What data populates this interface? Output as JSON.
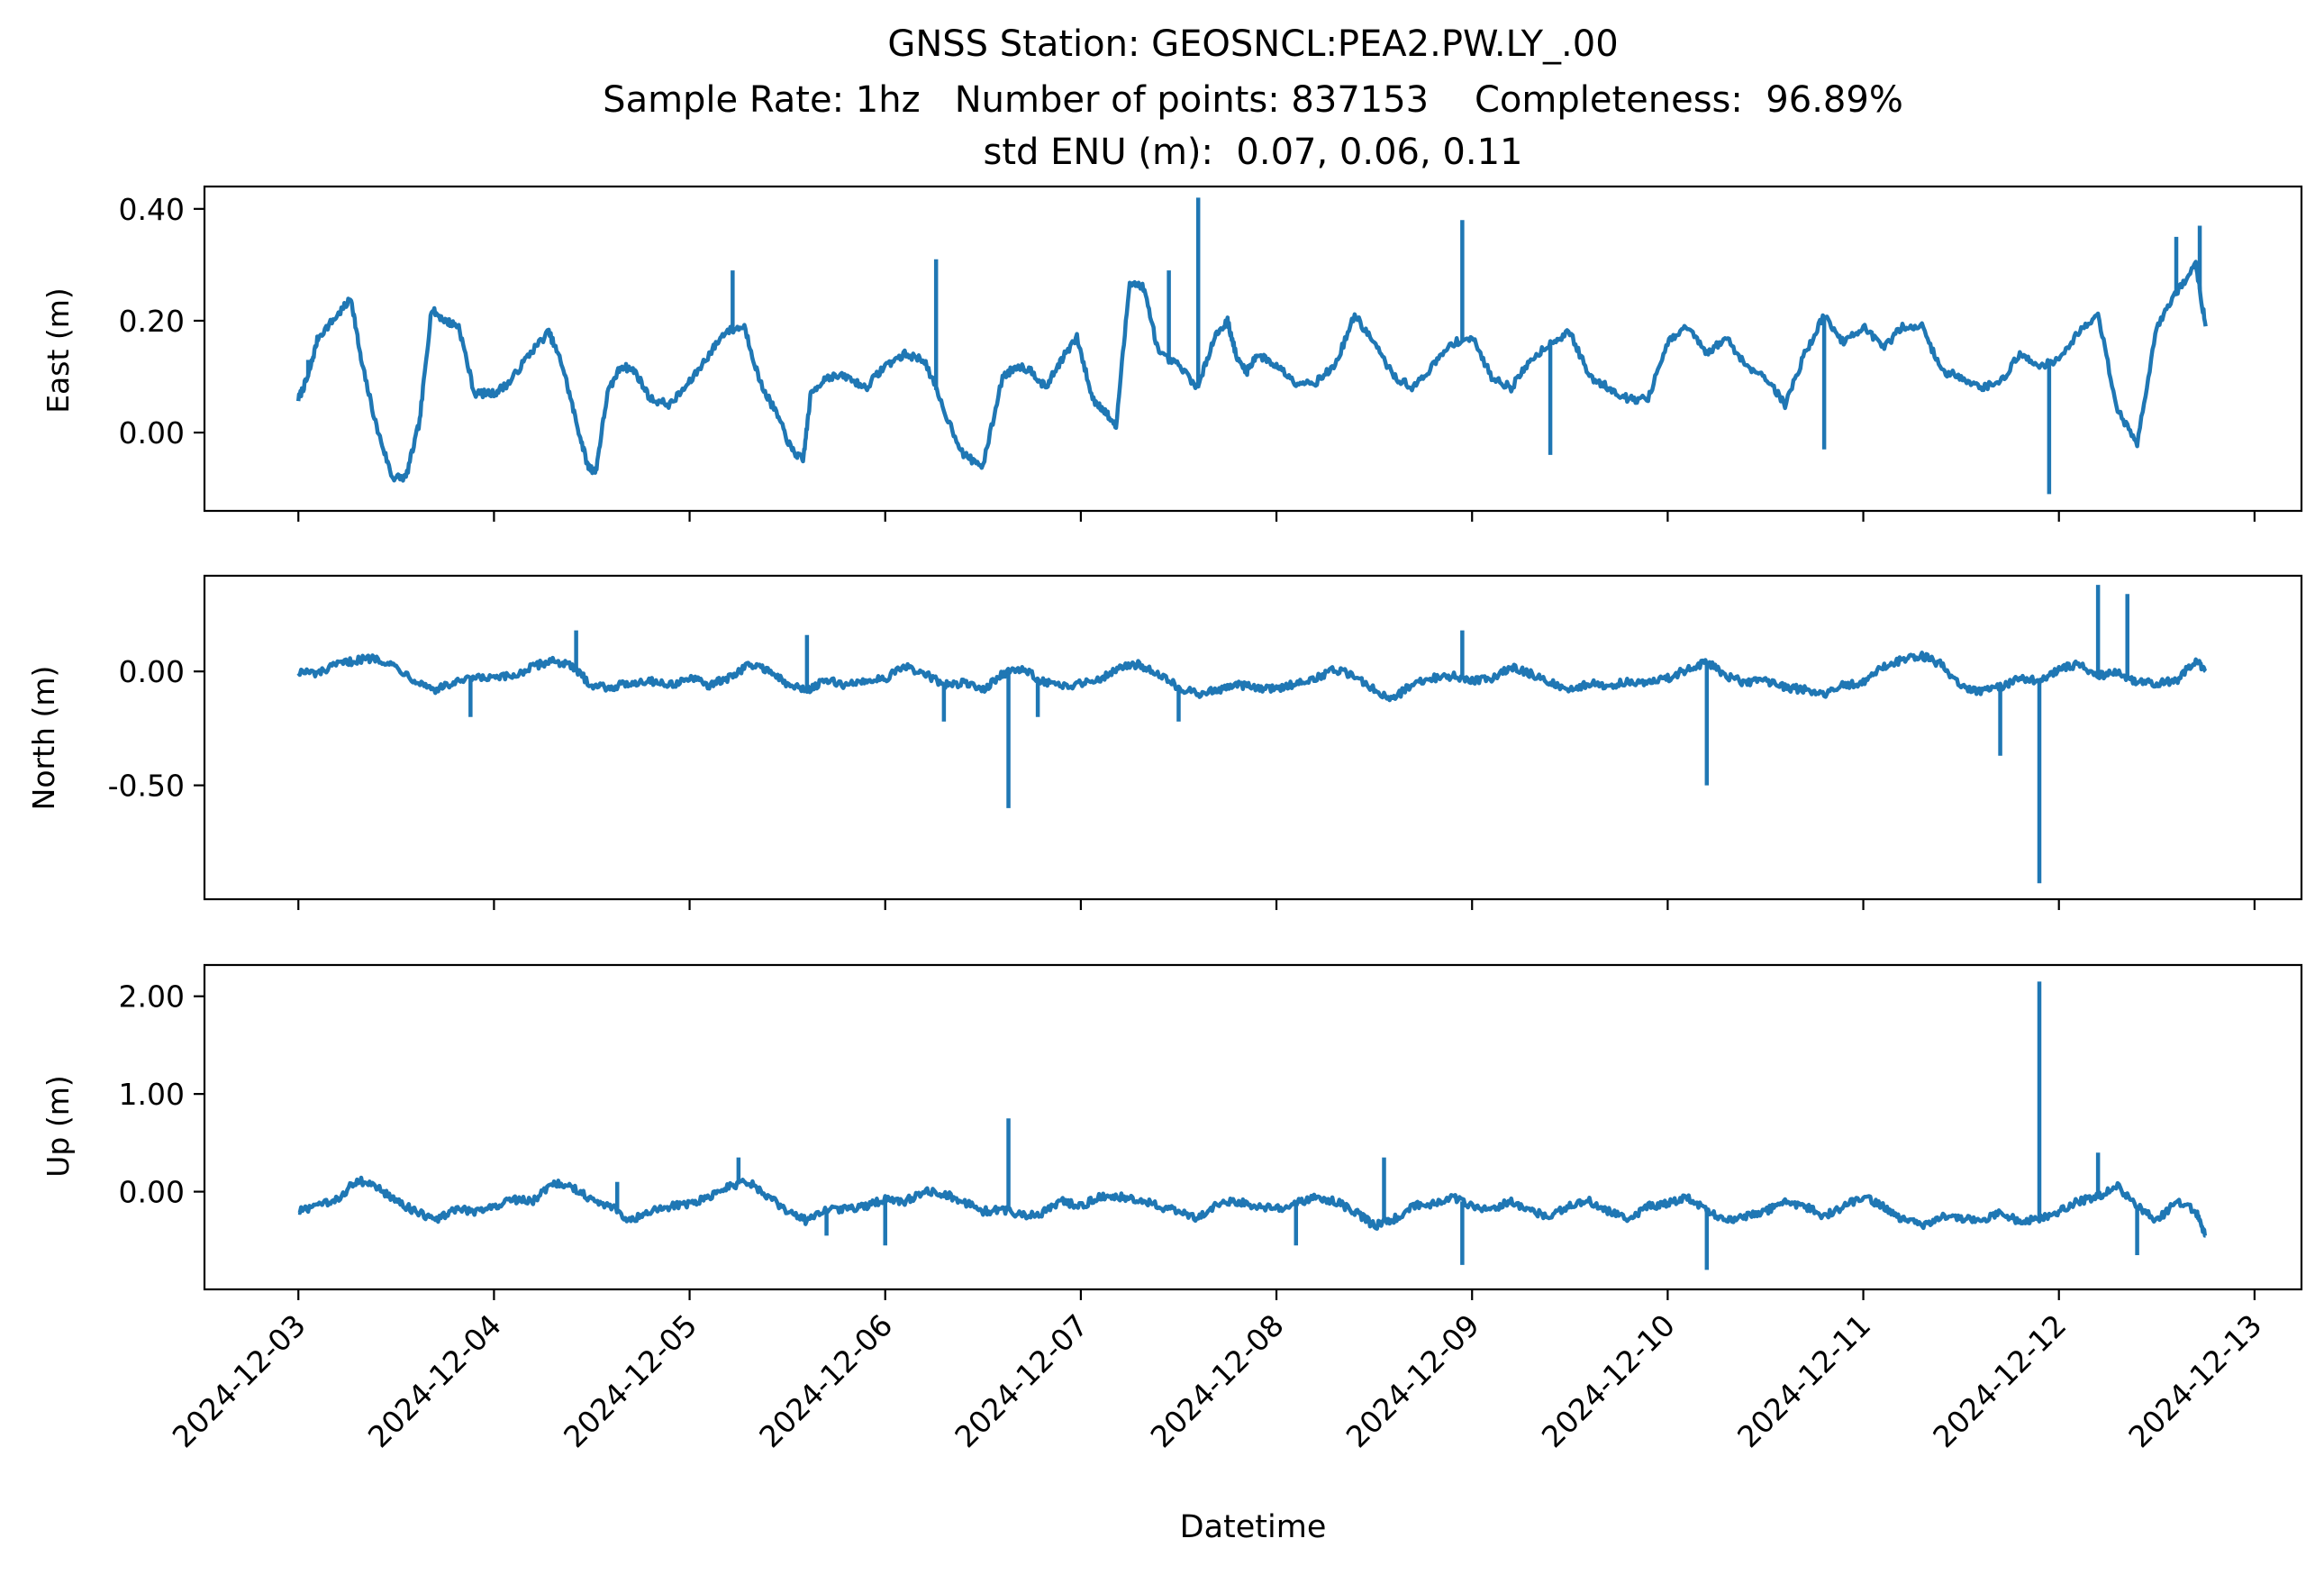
{
  "figure": {
    "title_lines": [
      "GNSS Station: GEOSNCL:PEA2.PW.LY_.00",
      "Sample Rate: 1hz   Number of points: 837153    Completeness:  96.89%",
      "std ENU (m):  0.07, 0.06, 0.11"
    ],
    "xlabel": "Datetime",
    "x_ticks": [
      "2024-12-03",
      "2024-12-04",
      "2024-12-05",
      "2024-12-06",
      "2024-12-07",
      "2024-12-08",
      "2024-12-09",
      "2024-12-10",
      "2024-12-11",
      "2024-12-12",
      "2024-12-13"
    ],
    "line_color": "#1f77b4"
  },
  "chart_data": [
    {
      "type": "line",
      "ylabel": "East (m)",
      "x_unit": "days since 2024-12-03 00:00",
      "xlim": [
        -0.48,
        10.24
      ],
      "ylim": [
        -0.14,
        0.44
      ],
      "yticks": [
        0.0,
        0.2,
        0.4
      ],
      "ytick_labels": [
        "0.00",
        "0.20",
        "0.40"
      ],
      "series": [
        {
          "x": [
            0,
            0.05,
            0.1,
            0.2,
            0.27,
            0.32,
            0.4,
            0.48,
            0.55,
            0.62,
            0.68,
            0.75,
            0.82,
            0.9,
            1.0,
            1.08,
            1.18,
            1.28,
            1.35,
            1.42,
            1.48,
            1.52,
            1.58,
            1.65,
            1.72,
            1.8,
            1.9,
            2.0,
            2.1,
            2.18,
            2.28,
            2.36,
            2.45,
            2.52,
            2.58,
            2.62,
            2.7,
            2.8,
            2.9,
            3.0,
            3.1,
            3.2,
            3.3,
            3.4,
            3.5,
            3.6,
            3.68,
            3.75,
            3.82,
            3.9,
            3.98,
            4.06,
            4.12,
            4.18,
            4.25,
            4.32,
            4.4,
            4.5,
            4.6,
            4.68,
            4.75,
            4.8,
            4.85,
            4.9,
            5.0,
            5.1,
            5.2,
            5.3,
            5.4,
            5.5,
            5.6,
            5.7,
            5.8,
            5.9,
            6.0,
            6.1,
            6.2,
            6.3,
            6.4,
            6.5,
            6.6,
            6.7,
            6.8,
            6.9,
            7.0,
            7.1,
            7.2,
            7.3,
            7.4,
            7.5,
            7.6,
            7.7,
            7.8,
            7.9,
            8.0,
            8.1,
            8.2,
            8.3,
            8.4,
            8.5,
            8.6,
            8.7,
            8.8,
            8.9,
            9.0,
            9.1,
            9.2,
            9.3,
            9.4,
            9.5,
            9.6,
            9.7,
            9.75
          ],
          "y": [
            0.06,
            0.1,
            0.17,
            0.21,
            0.24,
            0.13,
            0.01,
            -0.08,
            -0.08,
            0.02,
            0.22,
            0.2,
            0.19,
            0.07,
            0.07,
            0.09,
            0.14,
            0.18,
            0.12,
            0.02,
            -0.06,
            -0.07,
            0.07,
            0.12,
            0.11,
            0.06,
            0.05,
            0.09,
            0.14,
            0.18,
            0.19,
            0.09,
            0.03,
            -0.03,
            -0.05,
            0.07,
            0.1,
            0.1,
            0.08,
            0.12,
            0.14,
            0.13,
            0.04,
            -0.04,
            -0.06,
            0.1,
            0.12,
            0.11,
            0.08,
            0.13,
            0.17,
            0.06,
            0.04,
            0.01,
            0.27,
            0.26,
            0.14,
            0.12,
            0.08,
            0.17,
            0.2,
            0.13,
            0.11,
            0.14,
            0.12,
            0.09,
            0.09,
            0.12,
            0.21,
            0.16,
            0.1,
            0.08,
            0.12,
            0.16,
            0.17,
            0.1,
            0.08,
            0.13,
            0.16,
            0.18,
            0.1,
            0.08,
            0.06,
            0.06,
            0.16,
            0.19,
            0.14,
            0.17,
            0.12,
            0.1,
            0.05,
            0.14,
            0.21,
            0.16,
            0.19,
            0.15,
            0.19,
            0.19,
            0.11,
            0.1,
            0.08,
            0.09,
            0.14,
            0.12,
            0.13,
            0.18,
            0.21,
            0.04,
            -0.02,
            0.19,
            0.25,
            0.3,
            0.19
          ]
        }
      ],
      "spikes": [
        {
          "x": 4.6,
          "y": 0.42
        },
        {
          "x": 5.95,
          "y": 0.38
        },
        {
          "x": 0.05,
          "y": 0.13
        },
        {
          "x": 2.22,
          "y": 0.29
        },
        {
          "x": 3.26,
          "y": 0.31
        },
        {
          "x": 4.45,
          "y": 0.29
        },
        {
          "x": 6.4,
          "y": -0.04
        },
        {
          "x": 7.8,
          "y": -0.03
        },
        {
          "x": 8.95,
          "y": -0.11
        },
        {
          "x": 9.6,
          "y": 0.35
        },
        {
          "x": 9.72,
          "y": 0.37
        }
      ]
    },
    {
      "type": "line",
      "ylabel": "North (m)",
      "x_unit": "days since 2024-12-03 00:00",
      "xlim": [
        -0.48,
        10.24
      ],
      "ylim": [
        -1.0,
        0.42
      ],
      "yticks": [
        0.0,
        -0.5
      ],
      "ytick_labels": [
        "0.00",
        "-0.50"
      ],
      "series": [
        {
          "x": [
            0,
            0.1,
            0.2,
            0.3,
            0.4,
            0.5,
            0.6,
            0.7,
            0.8,
            0.9,
            1.0,
            1.1,
            1.2,
            1.3,
            1.4,
            1.5,
            1.6,
            1.7,
            1.8,
            1.9,
            2.0,
            2.1,
            2.2,
            2.3,
            2.4,
            2.5,
            2.6,
            2.7,
            2.8,
            2.9,
            3.0,
            3.1,
            3.2,
            3.3,
            3.4,
            3.5,
            3.6,
            3.7,
            3.8,
            3.9,
            4.0,
            4.1,
            4.2,
            4.3,
            4.4,
            4.5,
            4.6,
            4.7,
            4.8,
            4.9,
            5.0,
            5.1,
            5.2,
            5.3,
            5.4,
            5.5,
            5.6,
            5.7,
            5.8,
            5.9,
            6.0,
            6.1,
            6.2,
            6.3,
            6.4,
            6.5,
            6.6,
            6.7,
            6.8,
            6.9,
            7.0,
            7.1,
            7.2,
            7.3,
            7.4,
            7.5,
            7.6,
            7.7,
            7.8,
            7.9,
            8.0,
            8.1,
            8.2,
            8.3,
            8.4,
            8.5,
            8.6,
            8.7,
            8.8,
            8.9,
            9.0,
            9.1,
            9.2,
            9.3,
            9.4,
            9.5,
            9.6,
            9.7,
            9.75
          ],
          "y": [
            0.0,
            -0.01,
            0.03,
            0.05,
            0.06,
            0.02,
            -0.04,
            -0.08,
            -0.05,
            -0.03,
            -0.03,
            -0.02,
            0.02,
            0.05,
            0.02,
            -0.06,
            -0.07,
            -0.05,
            -0.04,
            -0.06,
            -0.03,
            -0.06,
            -0.03,
            0.03,
            0.01,
            -0.06,
            -0.08,
            -0.04,
            -0.06,
            -0.04,
            -0.03,
            0.02,
            -0.01,
            -0.06,
            -0.05,
            -0.08,
            -0.01,
            0.01,
            -0.04,
            -0.07,
            -0.05,
            -0.03,
            0.02,
            0.03,
            -0.01,
            -0.07,
            -0.1,
            -0.08,
            -0.06,
            -0.07,
            -0.08,
            -0.05,
            -0.03,
            0.01,
            -0.02,
            -0.08,
            -0.12,
            -0.05,
            -0.03,
            -0.02,
            -0.04,
            -0.03,
            0.02,
            -0.01,
            -0.05,
            -0.08,
            -0.05,
            -0.07,
            -0.04,
            -0.05,
            -0.03,
            0.01,
            0.04,
            -0.02,
            -0.05,
            -0.04,
            -0.07,
            -0.08,
            -0.1,
            -0.06,
            -0.05,
            0.02,
            0.05,
            0.07,
            0.03,
            -0.07,
            -0.09,
            -0.07,
            -0.03,
            -0.04,
            0.01,
            0.03,
            -0.02,
            0.0,
            -0.05,
            -0.05,
            -0.04,
            0.05,
            0.0
          ]
        }
      ],
      "spikes": [
        {
          "x": 3.63,
          "y": -0.6
        },
        {
          "x": 7.2,
          "y": -0.5
        },
        {
          "x": 8.9,
          "y": -0.93
        },
        {
          "x": 8.7,
          "y": -0.37
        },
        {
          "x": 9.2,
          "y": 0.38
        },
        {
          "x": 9.35,
          "y": 0.34
        },
        {
          "x": 5.95,
          "y": 0.18
        },
        {
          "x": 1.42,
          "y": 0.18
        },
        {
          "x": 3.3,
          "y": -0.22
        },
        {
          "x": 2.6,
          "y": 0.16
        },
        {
          "x": 3.78,
          "y": -0.2
        },
        {
          "x": 4.5,
          "y": -0.22
        },
        {
          "x": 0.88,
          "y": -0.2
        }
      ]
    },
    {
      "type": "line",
      "ylabel": "Up (m)",
      "x_unit": "days since 2024-12-03 00:00",
      "xlim": [
        -0.48,
        10.24
      ],
      "ylim": [
        -1.0,
        2.32
      ],
      "yticks": [
        0.0,
        1.0,
        2.0
      ],
      "ytick_labels": [
        "0.00",
        "1.00",
        "2.00"
      ],
      "series": [
        {
          "x": [
            0,
            0.1,
            0.2,
            0.3,
            0.4,
            0.5,
            0.6,
            0.7,
            0.8,
            0.9,
            1.0,
            1.1,
            1.2,
            1.3,
            1.4,
            1.5,
            1.6,
            1.7,
            1.8,
            1.9,
            2.0,
            2.1,
            2.2,
            2.3,
            2.4,
            2.5,
            2.6,
            2.7,
            2.8,
            2.9,
            3.0,
            3.1,
            3.2,
            3.3,
            3.4,
            3.5,
            3.6,
            3.7,
            3.8,
            3.9,
            4.0,
            4.1,
            4.2,
            4.3,
            4.4,
            4.5,
            4.6,
            4.7,
            4.8,
            4.9,
            5.0,
            5.1,
            5.2,
            5.3,
            5.4,
            5.5,
            5.6,
            5.7,
            5.8,
            5.9,
            6.0,
            6.1,
            6.2,
            6.3,
            6.4,
            6.5,
            6.6,
            6.7,
            6.8,
            6.9,
            7.0,
            7.1,
            7.2,
            7.3,
            7.4,
            7.5,
            7.6,
            7.7,
            7.8,
            7.9,
            8.0,
            8.1,
            8.2,
            8.3,
            8.4,
            8.5,
            8.6,
            8.7,
            8.8,
            8.9,
            9.0,
            9.1,
            9.2,
            9.3,
            9.4,
            9.5,
            9.6,
            9.7,
            9.75
          ],
          "y": [
            -0.2,
            -0.15,
            -0.08,
            0.12,
            0.05,
            -0.1,
            -0.2,
            -0.3,
            -0.18,
            -0.2,
            -0.15,
            -0.08,
            -0.1,
            0.1,
            0.05,
            -0.08,
            -0.15,
            -0.3,
            -0.2,
            -0.15,
            -0.12,
            -0.05,
            0.05,
            0.1,
            -0.05,
            -0.2,
            -0.3,
            -0.18,
            -0.18,
            -0.15,
            -0.08,
            -0.1,
            0.0,
            -0.02,
            -0.1,
            -0.2,
            -0.18,
            -0.25,
            -0.22,
            -0.1,
            -0.15,
            -0.05,
            -0.05,
            -0.08,
            -0.15,
            -0.2,
            -0.28,
            -0.12,
            -0.1,
            -0.15,
            -0.18,
            -0.12,
            -0.05,
            -0.1,
            -0.2,
            -0.35,
            -0.28,
            -0.15,
            -0.12,
            -0.05,
            -0.15,
            -0.18,
            -0.1,
            -0.2,
            -0.25,
            -0.15,
            -0.1,
            -0.2,
            -0.3,
            -0.15,
            -0.12,
            -0.05,
            -0.2,
            -0.3,
            -0.25,
            -0.2,
            -0.1,
            -0.15,
            -0.25,
            -0.15,
            -0.05,
            -0.15,
            -0.28,
            -0.35,
            -0.25,
            -0.28,
            -0.3,
            -0.22,
            -0.3,
            -0.28,
            -0.2,
            -0.1,
            -0.05,
            0.05,
            -0.15,
            -0.3,
            -0.1,
            -0.2,
            -0.45
          ]
        }
      ],
      "spikes": [
        {
          "x": 8.9,
          "y": 2.15
        },
        {
          "x": 3.63,
          "y": 0.75
        },
        {
          "x": 7.2,
          "y": -0.8
        },
        {
          "x": 5.95,
          "y": -0.75
        },
        {
          "x": 5.1,
          "y": -0.55
        },
        {
          "x": 5.55,
          "y": 0.35
        },
        {
          "x": 9.2,
          "y": 0.4
        },
        {
          "x": 9.4,
          "y": -0.65
        },
        {
          "x": 2.25,
          "y": 0.35
        },
        {
          "x": 1.63,
          "y": 0.1
        },
        {
          "x": 3.0,
          "y": -0.55
        },
        {
          "x": 2.7,
          "y": -0.45
        }
      ]
    }
  ]
}
